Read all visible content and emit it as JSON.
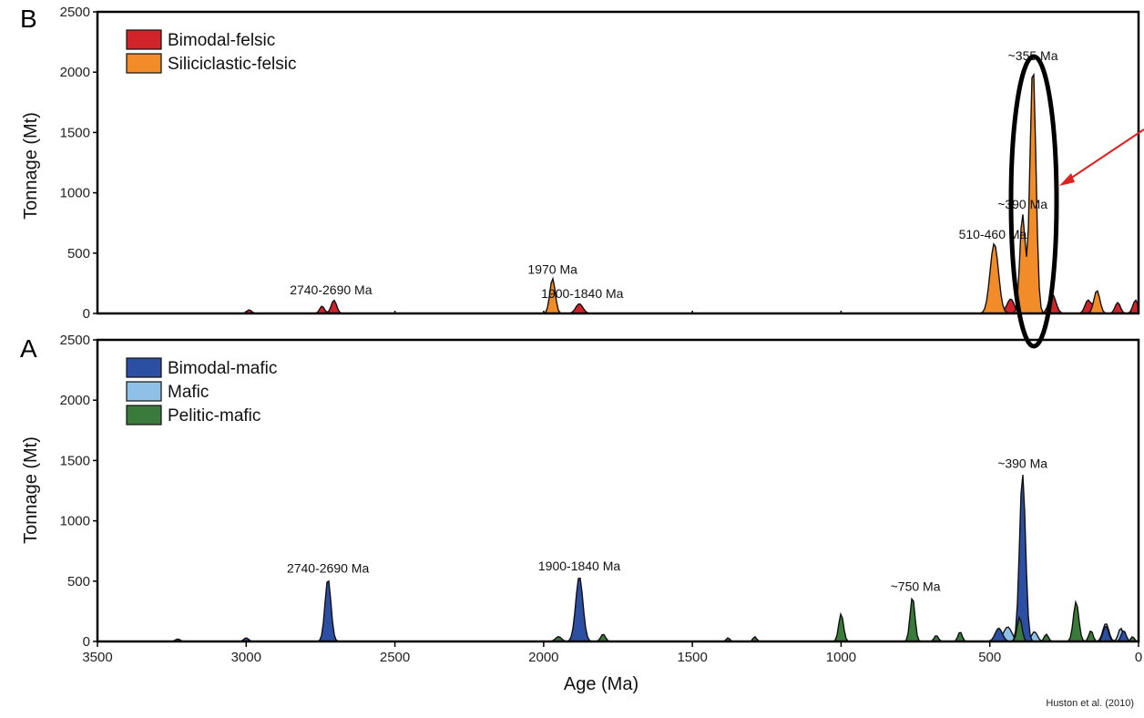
{
  "source_note": "Huston et al. (2010)",
  "chart_data": [
    {
      "type": "area",
      "panel_label": "B",
      "xlabel": "",
      "ylabel": "Tonnage (Mt)",
      "xlim": [
        3500,
        0
      ],
      "ylim": [
        0,
        2500
      ],
      "yticks": [
        0,
        500,
        1000,
        1500,
        2000,
        2500
      ],
      "x_axis_reversed": true,
      "legend": {
        "placement": "top-left",
        "entries": [
          "Bimodal-felsic",
          "Siliciclastic-felsic"
        ]
      },
      "series": [
        {
          "name": "Bimodal-felsic",
          "color": "#d0232a",
          "peaks": [
            {
              "x": 2990,
              "y": 30,
              "w": 8
            },
            {
              "x": 2745,
              "y": 60,
              "w": 8
            },
            {
              "x": 2705,
              "y": 110,
              "w": 9
            },
            {
              "x": 1880,
              "y": 80,
              "w": 12
            },
            {
              "x": 480,
              "y": 90,
              "w": 14
            },
            {
              "x": 430,
              "y": 120,
              "w": 12
            },
            {
              "x": 370,
              "y": 100,
              "w": 12
            },
            {
              "x": 290,
              "y": 160,
              "w": 12
            },
            {
              "x": 170,
              "y": 110,
              "w": 10
            },
            {
              "x": 140,
              "y": 130,
              "w": 10
            },
            {
              "x": 70,
              "y": 90,
              "w": 9
            },
            {
              "x": 10,
              "y": 110,
              "w": 9
            }
          ]
        },
        {
          "name": "Siliciclastic-felsic",
          "color": "#f28c28",
          "peaks": [
            {
              "x": 1970,
              "y": 290,
              "w": 9
            },
            {
              "x": 485,
              "y": 580,
              "w": 14
            },
            {
              "x": 390,
              "y": 820,
              "w": 9
            },
            {
              "x": 355,
              "y": 2060,
              "w": 10
            },
            {
              "x": 140,
              "y": 190,
              "w": 10
            }
          ]
        }
      ],
      "annotations": [
        {
          "text": "~355 Ma",
          "x": 355,
          "y": 2100
        },
        {
          "text": "~390 Ma",
          "x": 390,
          "y": 870
        },
        {
          "text": "510-460 Ma",
          "x": 490,
          "y": 620
        },
        {
          "text": "1970 Ma",
          "x": 1970,
          "y": 330
        },
        {
          "text": "1900-1840 Ma",
          "x": 1870,
          "y": 130
        },
        {
          "text": "2740-2690 Ma",
          "x": 2715,
          "y": 160
        }
      ],
      "highlight": {
        "shape": "ellipse",
        "around_x": 355,
        "color": "#000000",
        "arrow_color": "#e02020"
      }
    },
    {
      "type": "area",
      "panel_label": "A",
      "xlabel": "Age (Ma)",
      "ylabel": "Tonnage (Mt)",
      "xlim": [
        3500,
        0
      ],
      "ylim": [
        0,
        2500
      ],
      "xticks": [
        3500,
        3000,
        2500,
        2000,
        1500,
        1000,
        500,
        0
      ],
      "yticks": [
        0,
        500,
        1000,
        1500,
        2000,
        2500
      ],
      "x_axis_reversed": true,
      "legend": {
        "placement": "top-left",
        "entries": [
          "Bimodal-mafic",
          "Mafic",
          "Pelitic-mafic"
        ]
      },
      "series": [
        {
          "name": "Mafic",
          "color": "#8fc1e8",
          "peaks": [
            {
              "x": 440,
              "y": 120,
              "w": 14
            },
            {
              "x": 350,
              "y": 80,
              "w": 10
            },
            {
              "x": 110,
              "y": 150,
              "w": 10
            },
            {
              "x": 60,
              "y": 110,
              "w": 8
            }
          ]
        },
        {
          "name": "Bimodal-mafic",
          "color": "#2c4ea3",
          "peaks": [
            {
              "x": 3000,
              "y": 30,
              "w": 8
            },
            {
              "x": 2725,
              "y": 520,
              "w": 10
            },
            {
              "x": 1880,
              "y": 540,
              "w": 12
            },
            {
              "x": 470,
              "y": 110,
              "w": 12
            },
            {
              "x": 390,
              "y": 1390,
              "w": 10
            },
            {
              "x": 110,
              "y": 130,
              "w": 9
            },
            {
              "x": 50,
              "y": 90,
              "w": 8
            }
          ]
        },
        {
          "name": "Pelitic-mafic",
          "color": "#3a7a3a",
          "peaks": [
            {
              "x": 3230,
              "y": 20,
              "w": 8
            },
            {
              "x": 1950,
              "y": 40,
              "w": 10
            },
            {
              "x": 1800,
              "y": 60,
              "w": 8
            },
            {
              "x": 1380,
              "y": 30,
              "w": 6
            },
            {
              "x": 1290,
              "y": 40,
              "w": 6
            },
            {
              "x": 1000,
              "y": 230,
              "w": 8
            },
            {
              "x": 760,
              "y": 370,
              "w": 8
            },
            {
              "x": 680,
              "y": 50,
              "w": 7
            },
            {
              "x": 600,
              "y": 80,
              "w": 7
            },
            {
              "x": 400,
              "y": 200,
              "w": 8
            },
            {
              "x": 310,
              "y": 60,
              "w": 7
            },
            {
              "x": 210,
              "y": 330,
              "w": 9
            },
            {
              "x": 160,
              "y": 90,
              "w": 7
            },
            {
              "x": 20,
              "y": 40,
              "w": 6
            }
          ]
        }
      ],
      "annotations": [
        {
          "text": "~390 Ma",
          "x": 390,
          "y": 1440
        },
        {
          "text": "~750 Ma",
          "x": 750,
          "y": 420
        },
        {
          "text": "1900-1840 Ma",
          "x": 1880,
          "y": 590
        },
        {
          "text": "2740-2690 Ma",
          "x": 2725,
          "y": 570
        }
      ]
    }
  ]
}
